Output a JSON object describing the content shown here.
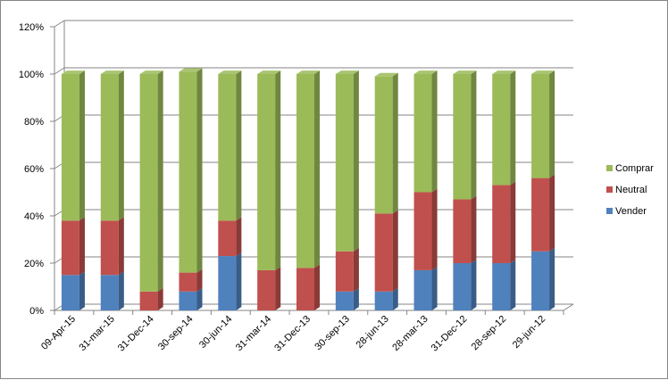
{
  "chart_data": {
    "type": "bar",
    "stacked": true,
    "style": "3d-column",
    "categories": [
      "09-Apr-15",
      "31-mar-15",
      "31-Dec-14",
      "30-sep-14",
      "30-jun-14",
      "31-mar-14",
      "31-Dec-13",
      "30-sep-13",
      "28-jun-13",
      "28-mar-13",
      "31-Dec-12",
      "28-sep-12",
      "29-jun-12"
    ],
    "series": [
      {
        "name": "Vender",
        "color": "#4F81BD",
        "values": [
          15,
          15,
          0,
          8,
          23,
          0,
          0,
          8,
          8,
          17,
          20,
          20,
          25
        ]
      },
      {
        "name": "Neutral",
        "color": "#C0504D",
        "values": [
          23,
          23,
          8,
          8,
          15,
          17,
          18,
          17,
          33,
          33,
          27,
          33,
          31
        ]
      },
      {
        "name": "Comprar",
        "color": "#9BBB59",
        "values": [
          62,
          62,
          92,
          85,
          62,
          83,
          82,
          75,
          58,
          50,
          53,
          47,
          44
        ]
      }
    ],
    "ylim": [
      0,
      120
    ],
    "yticks": [
      "0%",
      "20%",
      "40%",
      "60%",
      "80%",
      "100%",
      "120%"
    ],
    "grid": true,
    "legend_position": "right",
    "legend_order": [
      "Comprar",
      "Neutral",
      "Vender"
    ],
    "title": "",
    "xlabel": "",
    "ylabel": ""
  }
}
